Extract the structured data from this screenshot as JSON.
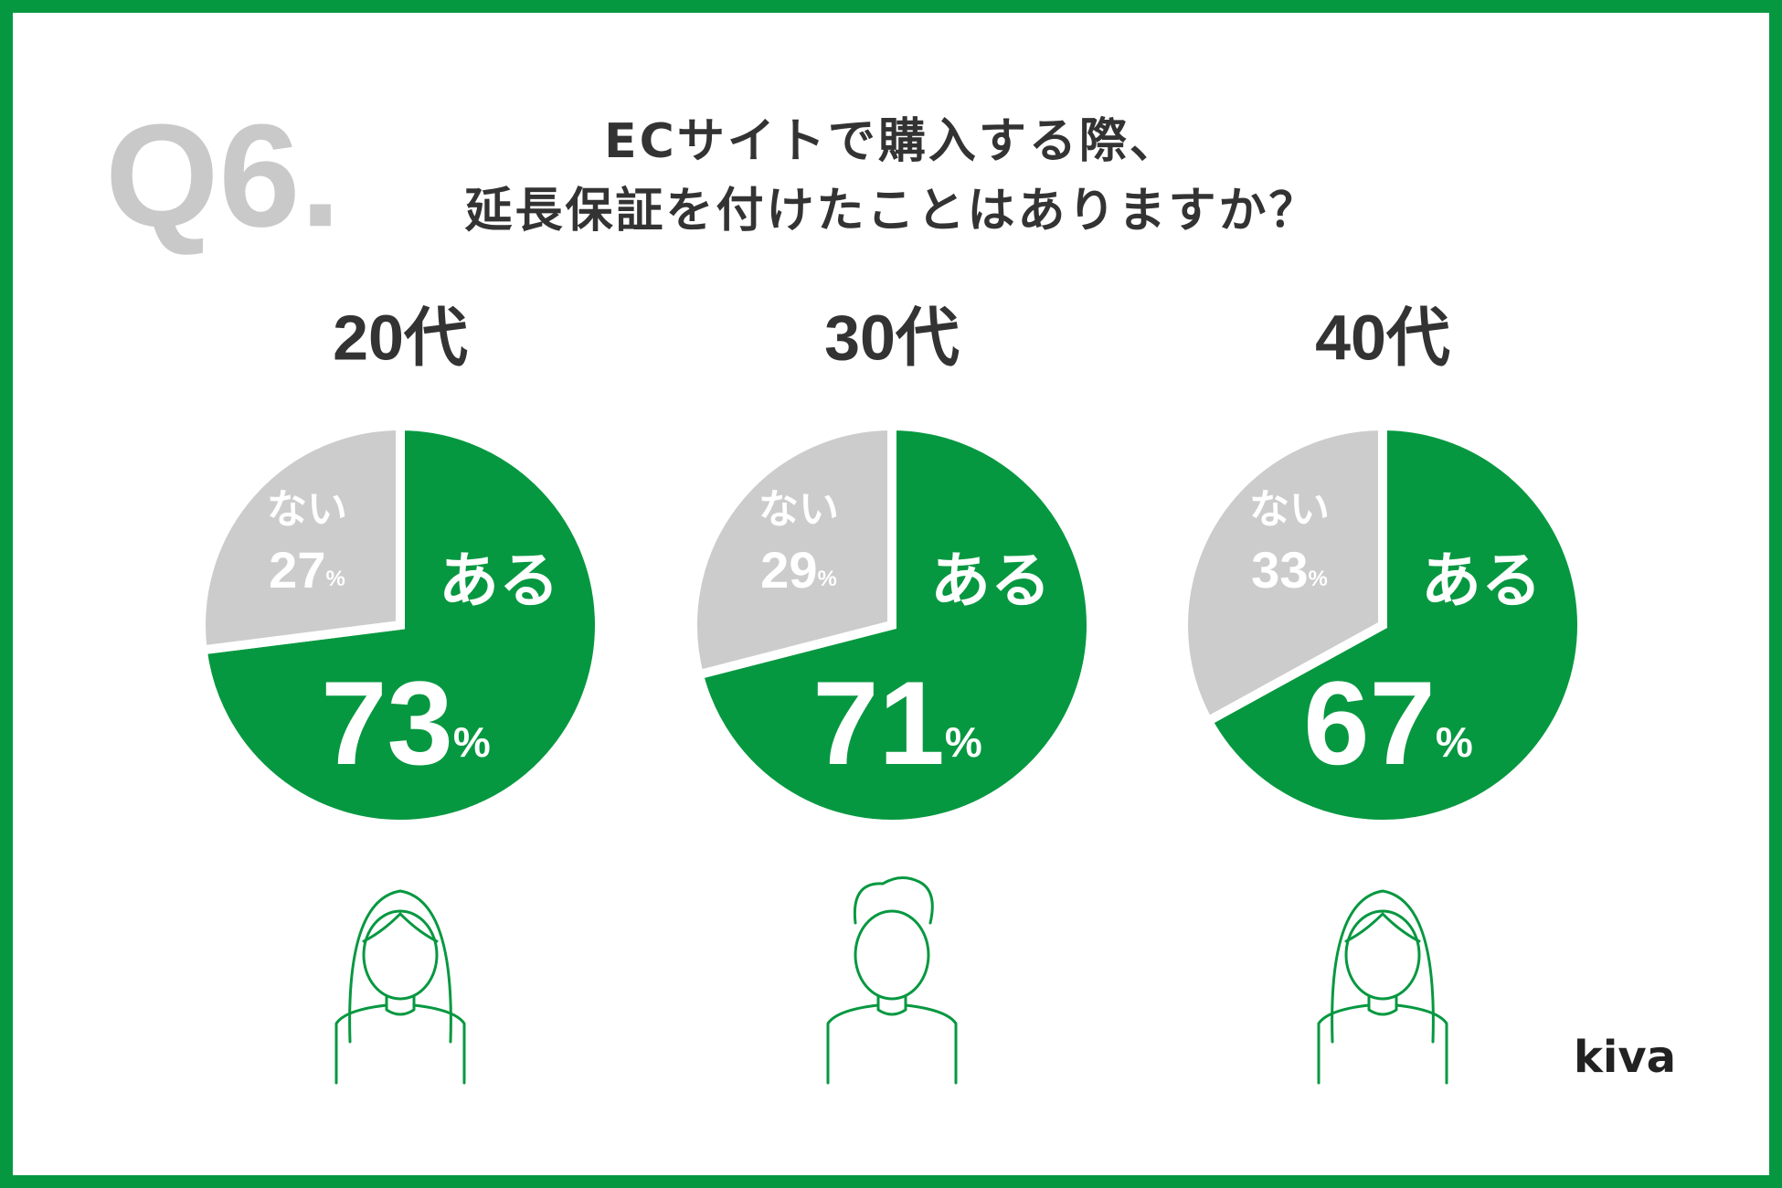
{
  "header": {
    "number": "Q6.",
    "title_lines": [
      "ECサイトで購入する際、",
      "延長保証を付けたことはありますか？"
    ]
  },
  "brand": "kiva",
  "chart_data": [
    {
      "type": "pie",
      "title": "20代",
      "categories": [
        "ある",
        "ない"
      ],
      "values": [
        73,
        27
      ],
      "value_labels": [
        "73%",
        "27%"
      ],
      "colors": [
        "#069840",
        "#cccccc"
      ]
    },
    {
      "type": "pie",
      "title": "30代",
      "categories": [
        "ある",
        "ない"
      ],
      "values": [
        71,
        29
      ],
      "value_labels": [
        "71%",
        "29%"
      ],
      "colors": [
        "#069840",
        "#cccccc"
      ]
    },
    {
      "type": "pie",
      "title": "40代",
      "categories": [
        "ある",
        "ない"
      ],
      "values": [
        67,
        33
      ],
      "value_labels": [
        "67%",
        "33%"
      ],
      "colors": [
        "#069840",
        "#cccccc"
      ]
    }
  ]
}
